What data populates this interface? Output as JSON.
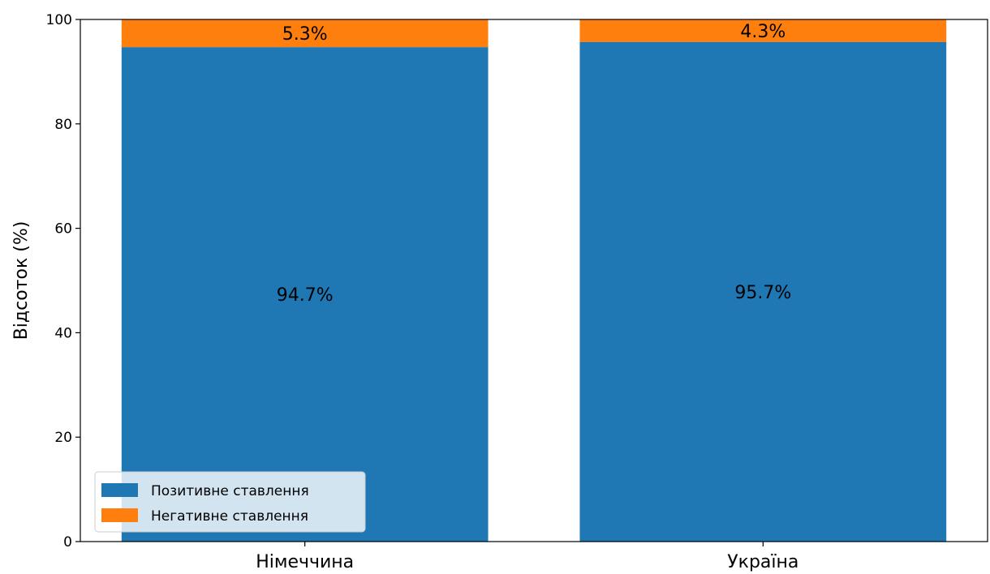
{
  "chart_data": {
    "type": "bar",
    "stacked": true,
    "title": "",
    "xlabel": "",
    "ylabel": "Відсоток (%)",
    "ylim": [
      0,
      100
    ],
    "yticks": [
      0,
      20,
      40,
      60,
      80,
      100
    ],
    "ytick_labels": [
      "0",
      "20",
      "40",
      "60",
      "80",
      "100"
    ],
    "grid": false,
    "legend_position": "lower-left",
    "categories": [
      "Німеччина",
      "Україна"
    ],
    "series": [
      {
        "name": "Позитивне ставлення",
        "color": "#1f77b4",
        "values": [
          94.7,
          95.7
        ],
        "labels": [
          "94.7%",
          "95.7%"
        ]
      },
      {
        "name": "Негативне ставлення",
        "color": "#ff7f0e",
        "values": [
          5.3,
          4.3
        ],
        "labels": [
          "5.3%",
          "4.3%"
        ]
      }
    ]
  }
}
